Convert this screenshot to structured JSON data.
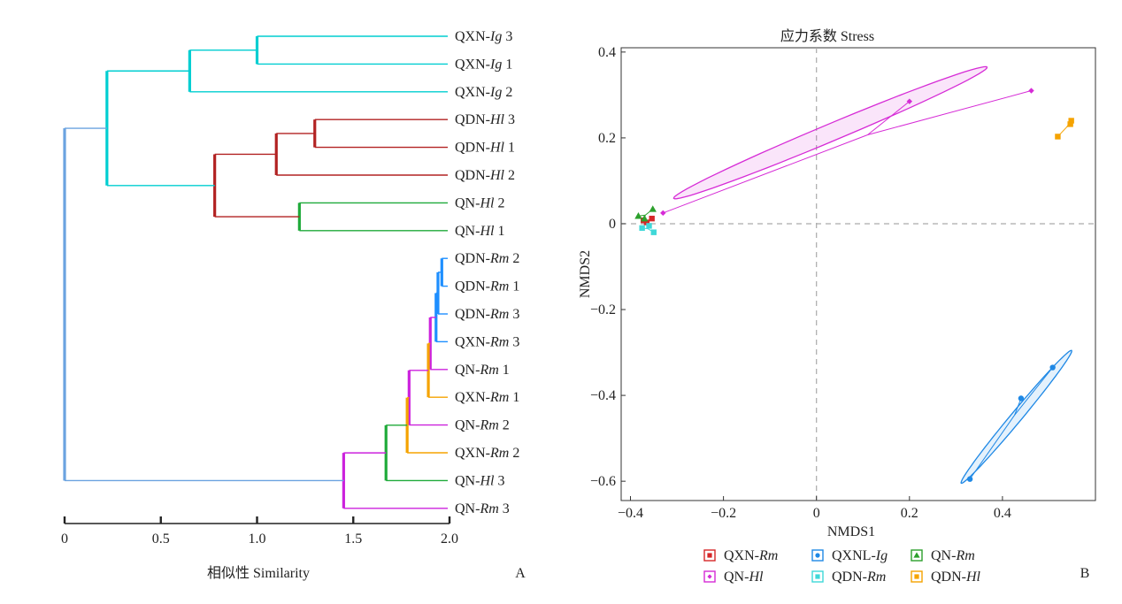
{
  "chart_data": [
    {
      "type": "dendrogram",
      "panel_label": "A",
      "xlabel": "相似性 Similarity",
      "xlim": [
        0,
        2.0
      ],
      "ticks": [
        "0",
        "0.5",
        "1.0",
        "1.5",
        "2.0"
      ],
      "leaves": [
        {
          "prefix": "QXN-",
          "italic": "Ig",
          "suffix": "  3"
        },
        {
          "prefix": "QXN-",
          "italic": "Ig",
          "suffix": "  1"
        },
        {
          "prefix": "QXN-",
          "italic": "Ig",
          "suffix": "  2"
        },
        {
          "prefix": "QDN-",
          "italic": "Hl",
          "suffix": " 3"
        },
        {
          "prefix": "QDN-",
          "italic": "Hl",
          "suffix": " 1"
        },
        {
          "prefix": "QDN-",
          "italic": "Hl",
          "suffix": " 2"
        },
        {
          "prefix": "QN-",
          "italic": "Hl",
          "suffix": " 2"
        },
        {
          "prefix": "QN-",
          "italic": "Hl",
          "suffix": " 1"
        },
        {
          "prefix": "QDN-",
          "italic": "Rm",
          "suffix": " 2"
        },
        {
          "prefix": "QDN-",
          "italic": "Rm",
          "suffix": " 1"
        },
        {
          "prefix": "QDN-",
          "italic": "Rm",
          "suffix": " 3"
        },
        {
          "prefix": "QXN-",
          "italic": "Rm",
          "suffix": " 3"
        },
        {
          "prefix": "QN-",
          "italic": "Rm",
          "suffix": " 1"
        },
        {
          "prefix": "QXN-",
          "italic": "Rm",
          "suffix": " 1"
        },
        {
          "prefix": "QN-",
          "italic": "Rm",
          "suffix": " 2"
        },
        {
          "prefix": "QXN-",
          "italic": "Rm",
          "suffix": " 2"
        },
        {
          "prefix": "QN-",
          "italic": "Hl",
          "suffix": " 3"
        },
        {
          "prefix": "QN-",
          "italic": "Rm",
          "suffix": " 3"
        }
      ],
      "merges": [
        {
          "a": 0,
          "b": 1,
          "height": 1.0,
          "color": "#00CED1"
        },
        {
          "a": 18,
          "b": 2,
          "height": 0.65,
          "color": "#00CED1"
        },
        {
          "a": 3,
          "b": 4,
          "height": 1.3,
          "color": "#B22222"
        },
        {
          "a": 20,
          "b": 5,
          "height": 1.1,
          "color": "#B22222"
        },
        {
          "a": 6,
          "b": 7,
          "height": 1.22,
          "color": "#1FAA3A"
        },
        {
          "a": 21,
          "b": 22,
          "height": 0.78,
          "color": "#B22222"
        },
        {
          "a": 19,
          "b": 23,
          "height": 0.22,
          "color": "#00CED1"
        },
        {
          "a": 8,
          "b": 9,
          "height": 1.96,
          "color": "#1E8FFF"
        },
        {
          "a": 25,
          "b": 10,
          "height": 1.94,
          "color": "#1E8FFF"
        },
        {
          "a": 26,
          "b": 11,
          "height": 1.93,
          "color": "#1E8FFF"
        },
        {
          "a": 27,
          "b": 12,
          "height": 1.9,
          "color": "#CC22DD"
        },
        {
          "a": 28,
          "b": 13,
          "height": 1.89,
          "color": "#F5A300"
        },
        {
          "a": 29,
          "b": 14,
          "height": 1.79,
          "color": "#CC22DD"
        },
        {
          "a": 30,
          "b": 15,
          "height": 1.78,
          "color": "#F5A300"
        },
        {
          "a": 31,
          "b": 16,
          "height": 1.67,
          "color": "#1FAA3A"
        },
        {
          "a": 32,
          "b": 17,
          "height": 1.45,
          "color": "#CC22DD"
        },
        {
          "a": 24,
          "b": 33,
          "height": 0.0,
          "color": "#6BA3E0"
        }
      ]
    },
    {
      "type": "scatter",
      "panel_label": "B",
      "title": "应力系数 Stress",
      "xlabel": "NMDS1",
      "ylabel": "NMDS2",
      "xlim": [
        -0.42,
        0.6
      ],
      "ylim": [
        -0.645,
        0.41
      ],
      "xticks": [
        -0.4,
        -0.2,
        0,
        0.2,
        0.4
      ],
      "xtick_labels": [
        "−0.4",
        "−0.2",
        "0",
        "0.2",
        "0.4"
      ],
      "yticks": [
        -0.6,
        -0.4,
        -0.2,
        0,
        0.2,
        0.4
      ],
      "ytick_labels": [
        "−0.6",
        "−0.4",
        "−0.2",
        "0",
        "0.2",
        "0.4"
      ],
      "legend_position": "bottom",
      "series": [
        {
          "name_prefix": "QXN-",
          "name_italic": "Rm",
          "color": "#D62728",
          "marker": "square",
          "points": [
            [
              -0.372,
              0.008
            ],
            [
              -0.365,
              0.003
            ],
            [
              -0.354,
              0.012
            ]
          ],
          "centroid": [
            -0.365,
            0.006
          ]
        },
        {
          "name_prefix": "QXNL-",
          "name_italic": "Ig",
          "color": "#1E88E5",
          "marker": "circle",
          "points": [
            [
              0.33,
              -0.595
            ],
            [
              0.44,
              -0.407
            ],
            [
              0.508,
              -0.335
            ]
          ],
          "centroid": [
            0.426,
            -0.446
          ],
          "ellipse": {
            "center": [
              0.43,
              -0.45
            ],
            "rx": 0.195,
            "ry": 0.012,
            "angle_deg": 52.5
          }
        },
        {
          "name_prefix": "QN-",
          "name_italic": "Rm",
          "color": "#2CA02C",
          "marker": "triangle",
          "points": [
            [
              -0.383,
              0.018
            ],
            [
              -0.352,
              0.034
            ],
            [
              -0.37,
              0.012
            ]
          ],
          "centroid": [
            -0.368,
            0.02
          ]
        },
        {
          "name_prefix": "QN-",
          "name_italic": "Hl",
          "color": "#D62BD6",
          "marker": "diamond",
          "points": [
            [
              0.2,
              0.285
            ],
            [
              0.462,
              0.31
            ],
            [
              -0.33,
              0.025
            ]
          ],
          "centroid": [
            0.11,
            0.207
          ],
          "ellipse": {
            "center": [
              0.03,
              0.212
            ],
            "rx": 0.37,
            "ry": 0.02,
            "angle_deg": 24.4
          }
        },
        {
          "name_prefix": "QDN-",
          "name_italic": "Rm",
          "color": "#3FD8D8",
          "marker": "square",
          "points": [
            [
              -0.36,
              -0.005
            ],
            [
              -0.375,
              -0.01
            ],
            [
              -0.35,
              -0.02
            ]
          ],
          "centroid": [
            -0.362,
            -0.012
          ]
        },
        {
          "name_prefix": "QDN-",
          "name_italic": "Hl",
          "color": "#F5A300",
          "marker": "square",
          "points": [
            [
              0.519,
              0.203
            ],
            [
              0.548,
              0.24
            ],
            [
              0.546,
              0.232
            ]
          ],
          "centroid": [
            0.538,
            0.225
          ]
        }
      ]
    }
  ]
}
